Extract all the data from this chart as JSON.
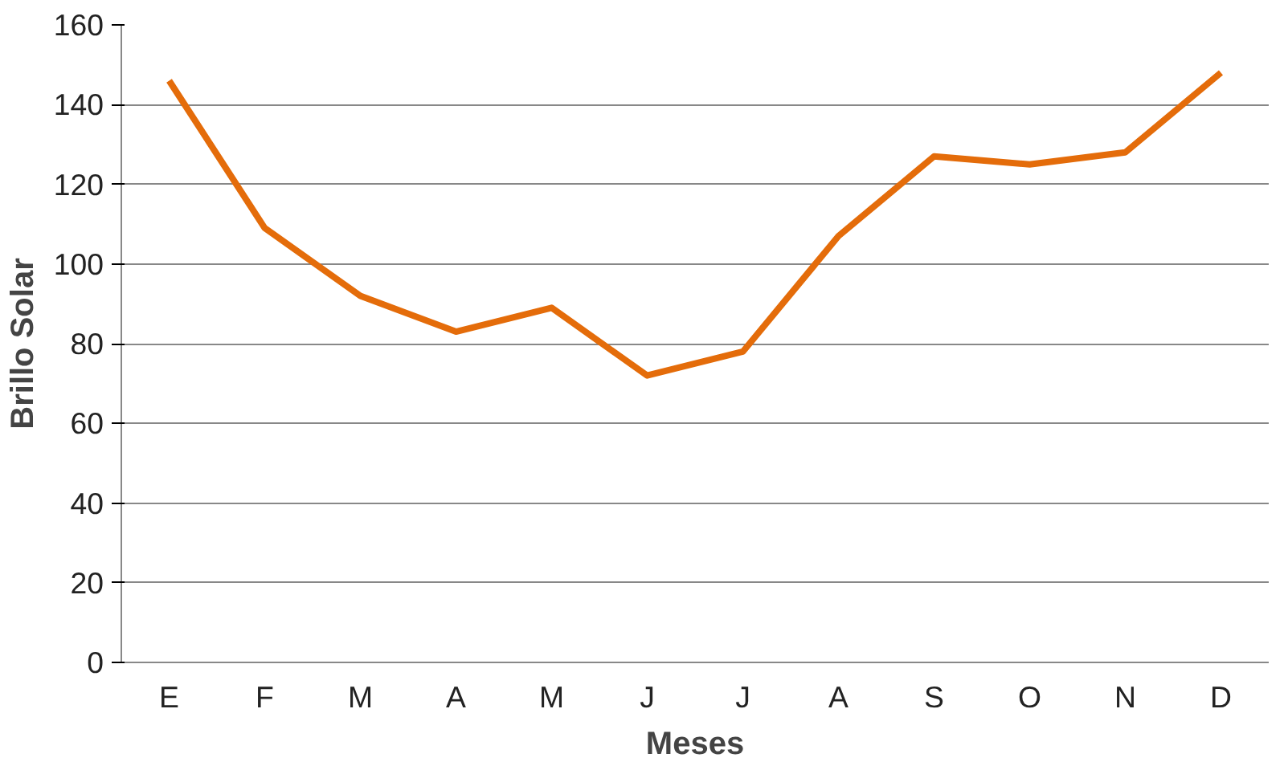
{
  "chart_data": {
    "type": "line",
    "xlabel": "Meses",
    "ylabel": "Brillo Solar",
    "categories": [
      "E",
      "F",
      "M",
      "A",
      "M",
      "J",
      "J",
      "A",
      "S",
      "O",
      "N",
      "D"
    ],
    "series": [
      {
        "color": "#e46c0a",
        "values": [
          146,
          109,
          92,
          83,
          89,
          72,
          78,
          107,
          127,
          125,
          128,
          148
        ]
      }
    ],
    "ylim": [
      0,
      160
    ],
    "yticks": [
      0,
      20,
      40,
      60,
      80,
      100,
      120,
      140,
      160
    ],
    "grid": "y",
    "marker": "none",
    "line_style": "solid"
  }
}
